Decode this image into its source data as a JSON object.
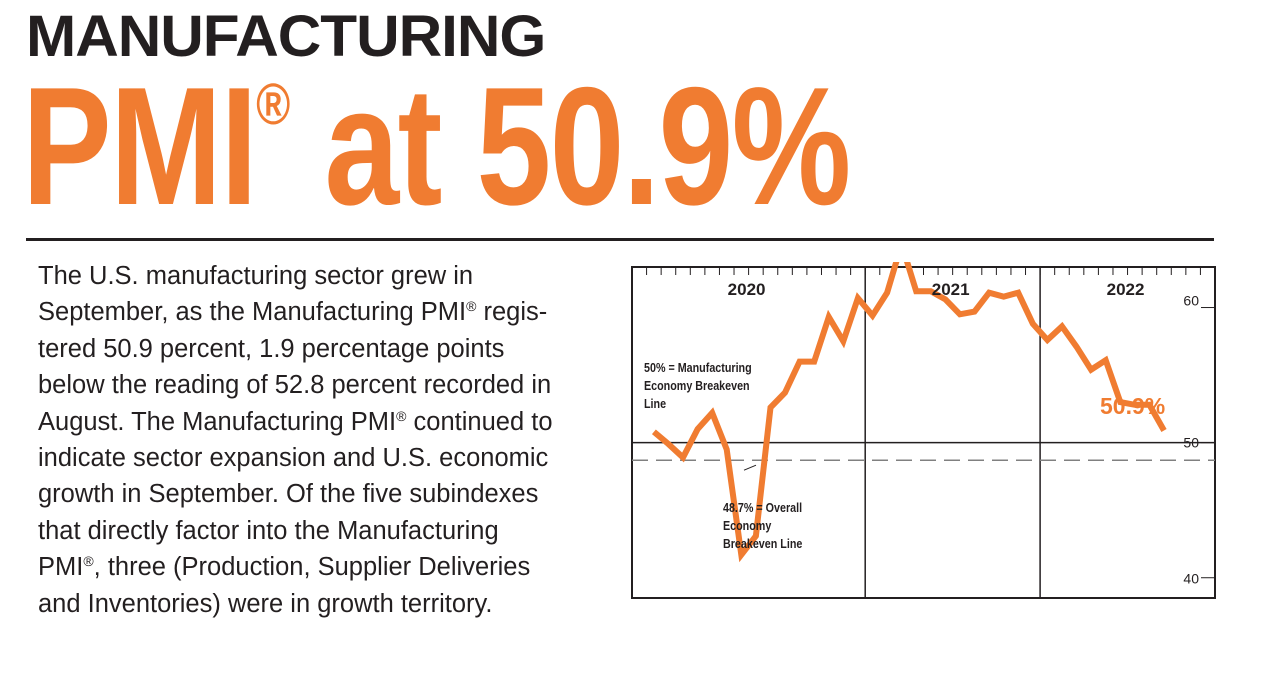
{
  "header": {
    "kicker": "MANUFACTURING",
    "headline_main": "PMI",
    "headline_reg": "®",
    "headline_rest": " at 50.9%"
  },
  "body_lines": [
    [
      "The U.S. manufacturing sector grew in"
    ],
    [
      "September, as the Manufacturing PMI",
      "®",
      " regis-"
    ],
    [
      "tered 50.9 percent, 1.9 percentage points"
    ],
    [
      "below the reading of 52.8 percent recorded in"
    ],
    [
      "August. The Manufacturing PMI",
      "®",
      " continued to"
    ],
    [
      "indicate sector expansion and U.S. economic"
    ],
    [
      "growth in September. Of the five subindexes"
    ],
    [
      "that directly factor into the Manufacturing"
    ],
    [
      "PMI",
      "®",
      ", three (Production, Supplier Deliveries"
    ],
    [
      "and Inventories) were in growth territory."
    ]
  ],
  "colors": {
    "accent": "#f07c31",
    "ink": "#231f20",
    "dash": "#808080"
  },
  "chart_data": {
    "type": "line",
    "year_labels": [
      "2020",
      "2021",
      "2022"
    ],
    "y_ticks": [
      40,
      50,
      60
    ],
    "y_tick_labels": [
      "40",
      "50",
      "60"
    ],
    "ylim": [
      38.5,
      63
    ],
    "reference_lines": [
      {
        "value": 50,
        "label_lines": [
          "50% = Manufacturing",
          "Economy Breakeven",
          "Line"
        ],
        "style": "solid"
      },
      {
        "value": 48.7,
        "label_lines": [
          "48.7% = Overall",
          "Economy",
          "Breakeven Line"
        ],
        "style": "dashed"
      }
    ],
    "end_label": "50.9%",
    "series": [
      {
        "x": [
          "2019-10",
          "2019-11",
          "2019-12",
          "2020-01",
          "2020-02",
          "2020-03",
          "2020-04",
          "2020-05",
          "2020-06",
          "2020-07",
          "2020-08",
          "2020-09",
          "2020-10",
          "2020-11",
          "2020-12",
          "2021-01",
          "2021-02",
          "2021-03",
          "2021-04",
          "2021-05",
          "2021-06",
          "2021-07",
          "2021-08",
          "2021-09",
          "2021-10",
          "2021-11",
          "2021-12",
          "2022-01",
          "2022-02",
          "2022-03",
          "2022-04",
          "2022-05",
          "2022-06",
          "2022-07",
          "2022-08",
          "2022-09"
        ],
        "values": [
          50.8,
          49.9,
          48.9,
          51.0,
          52.2,
          49.5,
          41.7,
          43.1,
          52.6,
          53.7,
          56.0,
          56.0,
          59.3,
          57.5,
          60.7,
          59.4,
          61.1,
          64.7,
          61.2,
          61.2,
          60.6,
          59.5,
          59.7,
          61.1,
          60.8,
          61.1,
          58.8,
          57.6,
          58.6,
          57.1,
          55.4,
          56.1,
          53.0,
          52.8,
          52.8,
          50.9
        ]
      }
    ]
  }
}
